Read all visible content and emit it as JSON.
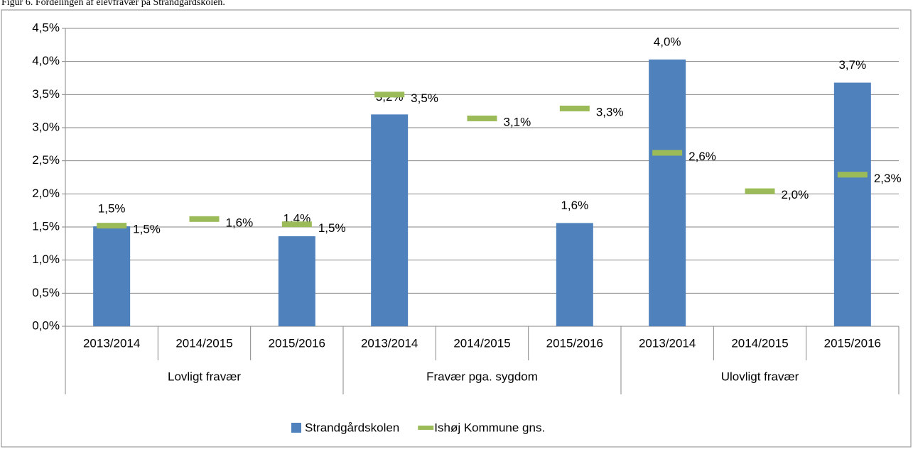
{
  "chart_data": {
    "type": "bar",
    "title": "Figur 6. Fordelingen af elevfravær på Strandgårdskolen.",
    "groups": [
      {
        "name": "Lovligt fravær",
        "categories": [
          "2013/2014",
          "2014/2015",
          "2015/2016"
        ]
      },
      {
        "name": "Fravær pga. sygdom",
        "categories": [
          "2013/2014",
          "2014/2015",
          "2015/2016"
        ]
      },
      {
        "name": "Ulovligt fravær",
        "categories": [
          "2013/2014",
          "2014/2015",
          "2015/2016"
        ]
      }
    ],
    "series": [
      {
        "name": "Strandgårdskolen",
        "type": "bar",
        "color": "#4f81bd",
        "values": [
          1.51,
          null,
          1.36,
          3.2,
          null,
          1.56,
          4.03,
          null,
          3.68
        ],
        "value_labels": [
          "1,5%",
          null,
          "1,4%",
          "3,2%",
          null,
          "1,6%",
          "4,0%",
          null,
          "3,7%"
        ]
      },
      {
        "name": "Ishøj Kommune gns.",
        "type": "marker",
        "color": "#9bbb59",
        "values": [
          1.52,
          1.62,
          1.54,
          3.5,
          3.14,
          3.29,
          2.62,
          2.04,
          2.29
        ],
        "value_labels": [
          "1,5%",
          "1,6%",
          "1,5%",
          "3,5%",
          "3,1%",
          "3,3%",
          "2,6%",
          "2,0%",
          "2,3%"
        ]
      }
    ],
    "ylim": [
      0,
      4.5
    ],
    "yticks": [
      {
        "value": 0,
        "label": "0,0%"
      },
      {
        "value": 0.5,
        "label": "0,5%"
      },
      {
        "value": 1,
        "label": "1,0%"
      },
      {
        "value": 1.5,
        "label": "1,5%"
      },
      {
        "value": 2,
        "label": "2,0%"
      },
      {
        "value": 2.5,
        "label": "2,5%"
      },
      {
        "value": 3,
        "label": "3,0%"
      },
      {
        "value": 3.5,
        "label": "3,5%"
      },
      {
        "value": 4,
        "label": "4,0%"
      },
      {
        "value": 4.5,
        "label": "4,5%"
      }
    ],
    "grid": true,
    "legend": "bottom"
  }
}
